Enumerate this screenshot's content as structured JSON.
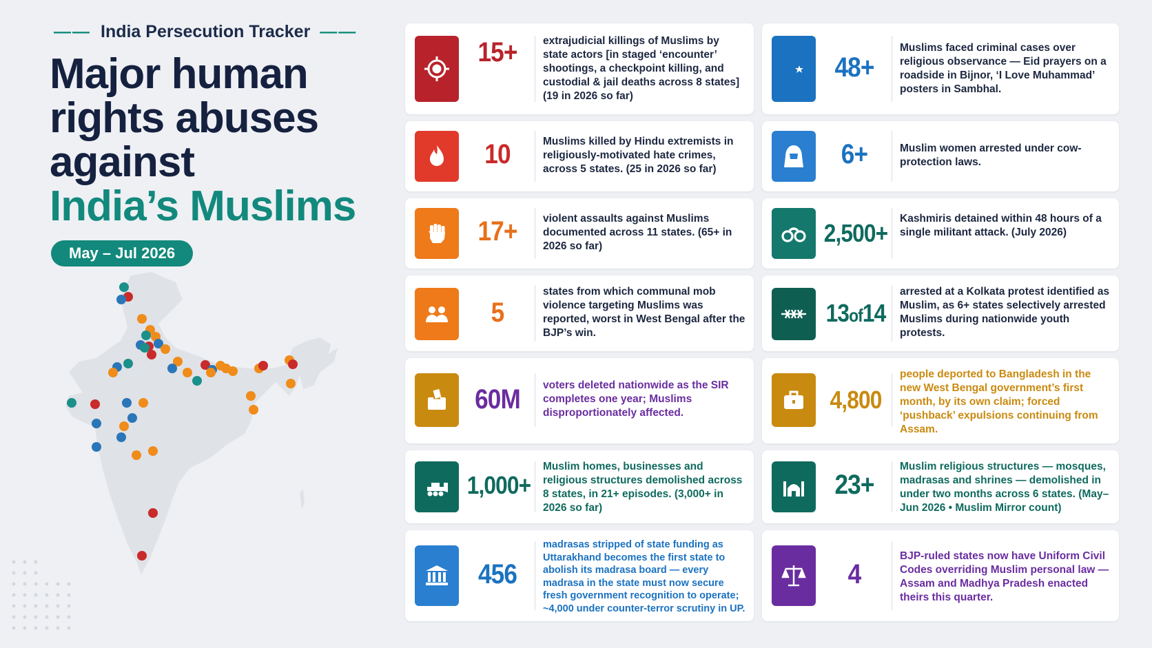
{
  "header": {
    "tracker_title": "India Persecution Tracker",
    "dash_left": "——",
    "dash_right": "——",
    "headline_line1": "Major human",
    "headline_line2": "rights abuses",
    "headline_line3": "against",
    "headline_highlight": "India’s Muslims",
    "date_range": "May – Jul 2026"
  },
  "colors": {
    "navy": "#15213f",
    "teal": "#12897c",
    "red": "#b8232b",
    "orange": "#ee7a1a",
    "blue": "#1b72c0",
    "gold": "#d08a10",
    "purple": "#6a2da0",
    "dark_teal": "#0f6a5e"
  },
  "cards": [
    {
      "icon": "target-icon",
      "stat": "15+",
      "text": "extrajudicial killings of Muslims by state actors [in staged ‘encounter’ shootings, a checkpoint killing, and custodial & jail deaths across 8 states] (19 in 2026 so far)"
    },
    {
      "icon": "crescent-star-icon",
      "stat": "48+",
      "text": "Muslims faced criminal cases over religious observance — Eid prayers on a roadside in Bijnor, ‘I Love Muhammad’ posters in Sambhal."
    },
    {
      "icon": "flame-icon",
      "stat": "10",
      "text": "Muslims killed by Hindu extremists in religiously-motivated hate crimes, across 5 states. (25 in 2026 so far)"
    },
    {
      "icon": "veiled-woman-icon",
      "stat": "6+",
      "text": "Muslim women arrested under cow-protection laws."
    },
    {
      "icon": "fist-icon",
      "stat": "17+",
      "text": "violent assaults against Muslims documented across 11 states. (65+ in 2026 so far)"
    },
    {
      "icon": "handcuffs-icon",
      "stat": "2,500+",
      "text": "Kashmiris detained within 48 hours of a single militant attack. (July 2026)"
    },
    {
      "icon": "people-icon",
      "stat": "5",
      "text": "states from which communal mob violence targeting Muslims was reported, worst in West Bengal after the BJP’s win."
    },
    {
      "icon": "barbed-wire-icon",
      "stat_main": "13",
      "stat_of": "of",
      "stat_end": "14",
      "text": "arrested at a Kolkata protest identified as Muslim, as 6+ states selectively arrested Muslims during nationwide youth protests."
    },
    {
      "icon": "ballot-box-icon",
      "stat": "60M",
      "text": "voters deleted nationwide as the SIR completes one year; Muslims disproportionately affected."
    },
    {
      "icon": "suitcase-icon",
      "stat": "4,800",
      "text": "people deported to Bangladesh in the new West Bengal government’s first month, by its own claim; forced ‘pushback’ expulsions continuing from Assam."
    },
    {
      "icon": "bulldozer-icon",
      "stat": "1,000+",
      "text": "Muslim homes, businesses and religious structures demolished across 8 states, in 21+ episodes. (3,000+ in 2026 so far)"
    },
    {
      "icon": "mosque-icon",
      "stat": "23+",
      "text": "Muslim religious structures — mosques, madrasas and shrines — demolished in under two months across 6 states. (May–Jun 2026 • Muslim Mirror count)"
    },
    {
      "icon": "government-building-icon",
      "stat": "456",
      "text": "madrasas stripped of state funding as Uttarakhand becomes the first state to abolish its madrasa board — every madrasa in the state must now secure fresh government recognition to operate; ~4,000 under counter-terror scrutiny in UP."
    },
    {
      "icon": "scales-of-justice-icon",
      "stat": "4",
      "text": "BJP-ruled states now have Uniform Civil Codes overriding Muslim personal law — Assam and Madhya Pradesh enacted theirs this quarter."
    }
  ]
}
